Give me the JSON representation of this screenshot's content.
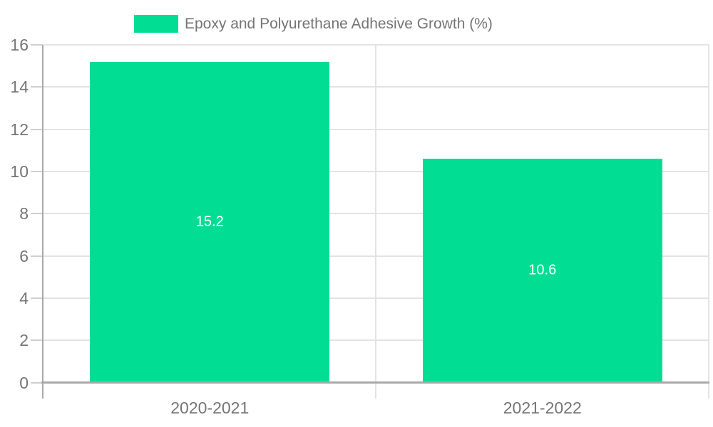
{
  "chart_data": {
    "type": "bar",
    "title": "",
    "legend": {
      "label": "Epoxy and Polyurethane Adhesive Growth (%)",
      "position": "top"
    },
    "categories": [
      "2020-2021",
      "2021-2022"
    ],
    "series": [
      {
        "name": "Epoxy and Polyurethane Adhesive Growth (%)",
        "values": [
          15.2,
          10.6
        ]
      }
    ],
    "value_labels": [
      "15.2",
      "10.6"
    ],
    "xlabel": "",
    "ylabel": "",
    "ylim": [
      0,
      16
    ],
    "ytick_step": 2,
    "yticks": [
      0,
      2,
      4,
      6,
      8,
      10,
      12,
      14,
      16
    ],
    "grid": true,
    "colors": {
      "bar": "#01DE94",
      "axis": "#a9a9a9",
      "grid": "#e3e3e3",
      "tick": "#cfcfcf",
      "tick_label": "#757575",
      "bar_label": "#ffffff",
      "background": "#ffffff"
    }
  }
}
